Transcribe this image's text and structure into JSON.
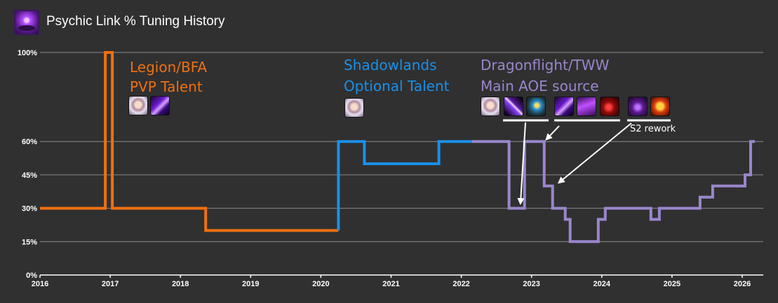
{
  "header": {
    "title": "Psychic Link % Tuning History",
    "icon": "psychic-link-icon"
  },
  "chart_data": {
    "type": "line",
    "step": true,
    "title": "Psychic Link % Tuning History",
    "xlabel": "",
    "ylabel": "",
    "xlim": [
      2016,
      2026.3
    ],
    "ylim": [
      0,
      100
    ],
    "x_ticks": [
      "2016",
      "2017",
      "2018",
      "2019",
      "2020",
      "2021",
      "2022",
      "2023",
      "2024",
      "2025",
      "2026"
    ],
    "y_ticks": [
      "0%",
      "15%",
      "30%",
      "45%",
      "60%",
      "100%"
    ],
    "y_tick_values": [
      0,
      15,
      30,
      45,
      60,
      100
    ],
    "grid": true,
    "series": [
      {
        "era": "legion-bfa",
        "color": "#f07010",
        "points": [
          [
            2016.0,
            30
          ],
          [
            2016.93,
            30
          ],
          [
            2016.93,
            100
          ],
          [
            2017.03,
            100
          ],
          [
            2017.03,
            30
          ],
          [
            2018.36,
            30
          ],
          [
            2018.36,
            20
          ],
          [
            2020.25,
            20
          ]
        ]
      },
      {
        "era": "shadowlands",
        "color": "#1a90e8",
        "points": [
          [
            2020.25,
            20
          ],
          [
            2020.25,
            60
          ],
          [
            2020.62,
            60
          ],
          [
            2020.62,
            50
          ],
          [
            2021.68,
            50
          ],
          [
            2021.68,
            60
          ],
          [
            2022.15,
            60
          ]
        ]
      },
      {
        "era": "dragonflight-tww",
        "color": "#9a86cc",
        "points": [
          [
            2022.15,
            60
          ],
          [
            2022.68,
            60
          ],
          [
            2022.68,
            30
          ],
          [
            2022.9,
            30
          ],
          [
            2022.9,
            60
          ],
          [
            2023.18,
            60
          ],
          [
            2023.18,
            40
          ],
          [
            2023.3,
            40
          ],
          [
            2023.3,
            30
          ],
          [
            2023.48,
            30
          ],
          [
            2023.48,
            25
          ],
          [
            2023.55,
            25
          ],
          [
            2023.55,
            15
          ],
          [
            2023.95,
            15
          ],
          [
            2023.95,
            25
          ],
          [
            2024.05,
            25
          ],
          [
            2024.05,
            30
          ],
          [
            2024.7,
            30
          ],
          [
            2024.7,
            25
          ],
          [
            2024.82,
            25
          ],
          [
            2024.82,
            30
          ],
          [
            2025.4,
            30
          ],
          [
            2025.4,
            35
          ],
          [
            2025.58,
            35
          ],
          [
            2025.58,
            40
          ],
          [
            2026.04,
            40
          ],
          [
            2026.04,
            45
          ],
          [
            2026.12,
            45
          ],
          [
            2026.12,
            60
          ],
          [
            2026.18,
            60
          ]
        ]
      }
    ],
    "annotations": [
      {
        "lines": [
          "Legion/BFA",
          "PVP Talent"
        ],
        "color": "#f07010"
      },
      {
        "lines": [
          "Shadowlands",
          "Optional Talent"
        ],
        "color": "#1a90e8"
      },
      {
        "lines": [
          "Dragonflight/TWW",
          "Main AOE source"
        ],
        "color": "#9a86cc"
      },
      {
        "lines": [
          "S2 rework"
        ],
        "color": "#ffffff"
      }
    ]
  },
  "icons": {
    "legion": [
      "face-portrait-icon",
      "shadow-blade-icon"
    ],
    "shadowlands": [
      "face-portrait-icon"
    ],
    "dragonflight": [
      "face-portrait-icon",
      "purple-streak-icon",
      "mind-eye-icon",
      "shadow-blade-icon",
      "purple-beam-icon",
      "crimson-void-icon",
      "void-lord-icon",
      "flame-skull-icon"
    ]
  }
}
